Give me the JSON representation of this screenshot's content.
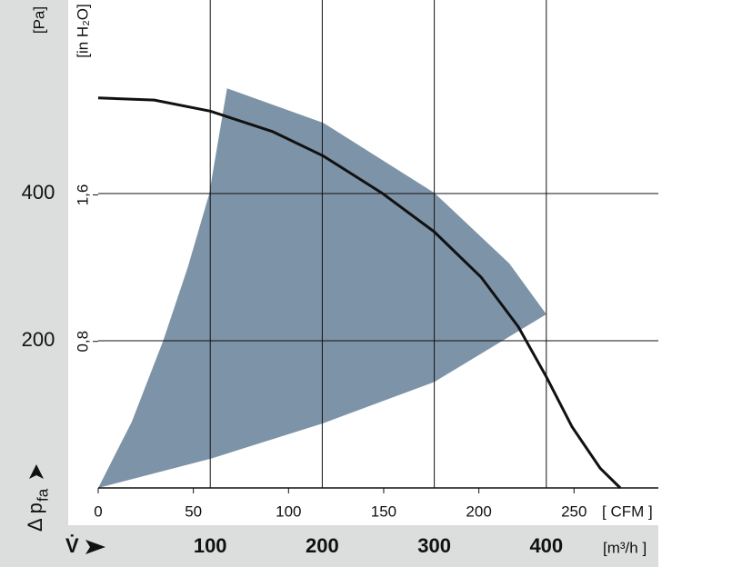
{
  "chart_data": {
    "type": "line",
    "y_label": {
      "symbol": "Δ p",
      "subscript": "fa"
    },
    "y_unit": "[Pa]",
    "y2_unit": "[in H₂O]",
    "x_label": "V̇",
    "x_unit": "[m³/h ]",
    "x2_unit": "[ CFM ]",
    "xlim": [
      0,
      500
    ],
    "xticks": [
      100,
      200,
      300,
      400
    ],
    "x2lim": [
      0,
      294.3
    ],
    "x2ticks": [
      0,
      50,
      100,
      150,
      200,
      250
    ],
    "ylim": [
      0,
      663
    ],
    "yticks": [
      200,
      400
    ],
    "y2lim": [
      0,
      2.664
    ],
    "y2ticks": [
      {
        "value": 0.8,
        "label": "0,8"
      },
      {
        "value": 1.6,
        "label": "1,6"
      }
    ],
    "grid": true,
    "series": [
      {
        "type": "area",
        "color": "#7d93a8",
        "x": [
          0,
          30,
          58,
          80,
          99,
          115,
          201,
          300,
          367,
          400,
          300,
          201,
          101,
          0
        ],
        "values": [
          0,
          90,
          200,
          300,
          399,
          543,
          496,
          401,
          305,
          236,
          144,
          88,
          40,
          0
        ]
      },
      {
        "type": "line",
        "color": "#111111",
        "x": [
          0,
          50,
          100,
          156,
          201,
          253,
          300,
          342,
          375,
          400,
          423,
          448,
          466
        ],
        "values": [
          530,
          527,
          512,
          484,
          451,
          401,
          348,
          286,
          219,
          151,
          83,
          27,
          0
        ]
      }
    ]
  }
}
